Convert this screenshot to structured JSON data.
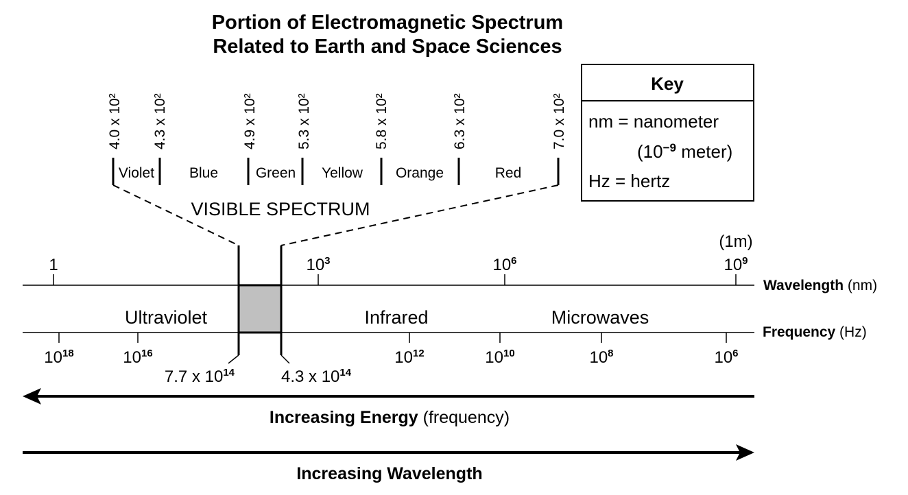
{
  "title": {
    "line1": "Portion of Electromagnetic Spectrum",
    "line2": "Related to Earth and Space Sciences"
  },
  "key": {
    "heading": "Key",
    "nm_line": "nm = nanometer",
    "nm_def": "(10",
    "nm_exp": "−9",
    "nm_def_end": " meter)",
    "hz_line": "Hz = hertz"
  },
  "visible": {
    "label": "VISIBLE SPECTRUM",
    "ticks": [
      "4.0 x 10²",
      "4.3 x 10²",
      "4.9 x 10²",
      "5.3 x 10²",
      "5.8 x 10²",
      "6.3 x 10²",
      "7.0 x 10²"
    ],
    "colors": [
      "Violet",
      "Blue",
      "Green",
      "Yellow",
      "Orange",
      "Red"
    ]
  },
  "wavelength_axis": {
    "label": "Wavelength",
    "unit": " (nm)",
    "ticks": [
      {
        "base": "1",
        "exp": ""
      },
      {
        "base": "10",
        "exp": "3"
      },
      {
        "base": "10",
        "exp": "6"
      },
      {
        "base": "10",
        "exp": "9"
      }
    ],
    "extra": "(1m)"
  },
  "bands": [
    "Ultraviolet",
    "Infrared",
    "Microwaves"
  ],
  "frequency_axis": {
    "label": "Frequency",
    "unit": " (Hz)",
    "ticks": [
      {
        "base": "10",
        "exp": "18"
      },
      {
        "base": "10",
        "exp": "16"
      },
      {
        "base": "10",
        "exp": "12"
      },
      {
        "base": "10",
        "exp": "10"
      },
      {
        "base": "10",
        "exp": "8"
      },
      {
        "base": "10",
        "exp": "6"
      }
    ],
    "visible_low": {
      "base": "7.7 x 10",
      "exp": "14"
    },
    "visible_high": {
      "base": "4.3 x 10",
      "exp": "14"
    }
  },
  "arrows": {
    "energy_bold": "Increasing Energy",
    "energy_rest": " (frequency)",
    "wavelength": "Increasing Wavelength"
  },
  "colors": {
    "visible_fill": "#c0c0c0",
    "ink": "#000000"
  }
}
